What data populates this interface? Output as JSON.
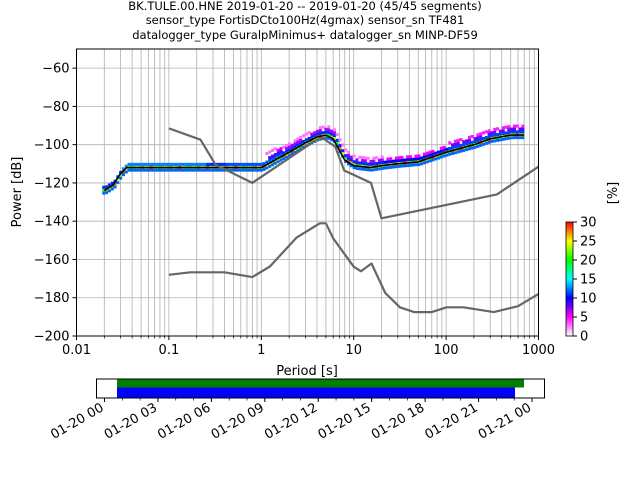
{
  "title_lines": [
    "BK.TULE.00.HNE   2019-01-20 -- 2019-01-20  (45/45 segments)",
    "sensor_type FortisDCto100Hz(4gmax) sensor_sn TF481",
    "datalogger_type GuralpMinimus+ datalogger_sn MINP-DF59"
  ],
  "chart_data": {
    "type": "heatmap",
    "xlabel": "Period [s]",
    "ylabel": "Power [dB]",
    "xscale": "log",
    "xlim": [
      0.01,
      1000
    ],
    "ylim": [
      -200,
      -50
    ],
    "grid": true,
    "x_ticks": [
      0.01,
      0.1,
      1,
      10,
      100,
      1000
    ],
    "x_tick_labels": [
      "0.01",
      "0.1",
      "1",
      "10",
      "100",
      "1000"
    ],
    "y_ticks": [
      -200,
      -180,
      -160,
      -140,
      -120,
      -100,
      -80,
      -60
    ],
    "y_tick_labels": [
      "−200",
      "−180",
      "−160",
      "−140",
      "−120",
      "−100",
      "−80",
      "−60"
    ],
    "colorbar": {
      "label": "[%]",
      "range": [
        0,
        30
      ],
      "ticks": [
        0,
        5,
        10,
        15,
        20,
        25,
        30
      ],
      "tick_labels": [
        "0",
        "5",
        "10",
        "15",
        "20",
        "25",
        "30"
      ],
      "colormap": [
        "#ffffff",
        "#ff00ff",
        "#0000ff",
        "#00ffff",
        "#00ff00",
        "#ffff00",
        "#ff0000"
      ]
    },
    "series": [
      {
        "kind": "mean_psd",
        "color": "#000000",
        "points": [
          [
            0.02,
            -124
          ],
          [
            0.025,
            -121
          ],
          [
            0.03,
            -115
          ],
          [
            0.035,
            -112
          ],
          [
            0.05,
            -112
          ],
          [
            0.1,
            -112
          ],
          [
            0.3,
            -112
          ],
          [
            1,
            -112
          ],
          [
            2,
            -104
          ],
          [
            3,
            -99
          ],
          [
            4,
            -96
          ],
          [
            5,
            -95
          ],
          [
            6,
            -97
          ],
          [
            7,
            -103
          ],
          [
            8,
            -108
          ],
          [
            10,
            -111
          ],
          [
            15,
            -112
          ],
          [
            20,
            -111
          ],
          [
            30,
            -110
          ],
          [
            50,
            -109
          ],
          [
            100,
            -104
          ],
          [
            200,
            -100
          ],
          [
            300,
            -97
          ],
          [
            500,
            -95
          ],
          [
            700,
            -95
          ]
        ]
      },
      {
        "kind": "noise_model_high",
        "color": "#666666",
        "points": [
          [
            0.1,
            -91.5
          ],
          [
            0.22,
            -97.4
          ],
          [
            0.32,
            -110.5
          ],
          [
            0.8,
            -120
          ],
          [
            3.8,
            -98
          ],
          [
            4.6,
            -96.5
          ],
          [
            6.3,
            -101
          ],
          [
            7.9,
            -113.5
          ],
          [
            15.4,
            -120
          ],
          [
            20,
            -138.5
          ],
          [
            354.8,
            -126
          ],
          [
            1000,
            -111.5
          ]
        ]
      },
      {
        "kind": "noise_model_low",
        "color": "#666666",
        "points": [
          [
            0.1,
            -168
          ],
          [
            0.17,
            -166.7
          ],
          [
            0.4,
            -166.7
          ],
          [
            0.8,
            -169.2
          ],
          [
            1.24,
            -163.7
          ],
          [
            2.4,
            -148.6
          ],
          [
            4.3,
            -141.1
          ],
          [
            5,
            -141.1
          ],
          [
            6,
            -149
          ],
          [
            10,
            -163.8
          ],
          [
            12,
            -166.2
          ],
          [
            15.6,
            -162.1
          ],
          [
            21.9,
            -177.5
          ],
          [
            31.6,
            -185
          ],
          [
            45,
            -187.5
          ],
          [
            70,
            -187.5
          ],
          [
            101,
            -185
          ],
          [
            154,
            -185
          ],
          [
            328,
            -187.5
          ],
          [
            600,
            -184.4
          ],
          [
            1000,
            -178
          ]
        ]
      }
    ],
    "time_axis": {
      "tick_labels": [
        "01-20 00",
        "01-20 03",
        "01-20 06",
        "01-20 09",
        "01-20 12",
        "01-20 15",
        "01-20 18",
        "01-20 21",
        "01-21 00"
      ],
      "data_availability_color": "#008000",
      "processed_color": "#0000ff"
    }
  }
}
